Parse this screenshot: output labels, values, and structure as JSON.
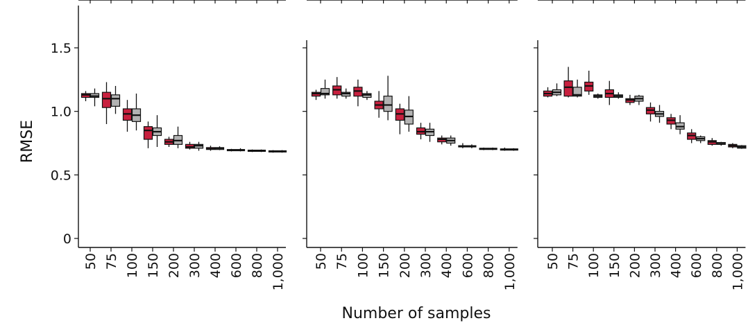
{
  "chart_data": {
    "type": "box",
    "ylabel": "RMSE",
    "xlabel": "Number of samples",
    "ylim": [
      0,
      1.8
    ],
    "yticks": [
      0,
      0.5,
      1.0,
      1.5
    ],
    "ytick_labels": [
      "0",
      "0.5",
      "1.0",
      "1.5"
    ],
    "categories": [
      "50",
      "75",
      "100",
      "150",
      "200",
      "300",
      "400",
      "600",
      "800",
      "1,000"
    ],
    "series_colors": [
      "#c8213f",
      "#b3b3b3"
    ],
    "panels": [
      {
        "series": [
          {
            "boxes": [
              {
                "q1": 1.11,
                "median": 1.13,
                "q3": 1.14,
                "min": 1.08,
                "max": 1.16
              },
              {
                "q1": 1.03,
                "median": 1.1,
                "q3": 1.15,
                "min": 0.9,
                "max": 1.23
              },
              {
                "q1": 0.93,
                "median": 0.98,
                "q3": 1.02,
                "min": 0.84,
                "max": 1.09
              },
              {
                "q1": 0.78,
                "median": 0.85,
                "q3": 0.88,
                "min": 0.71,
                "max": 0.92
              },
              {
                "q1": 0.74,
                "median": 0.76,
                "q3": 0.78,
                "min": 0.72,
                "max": 0.8
              },
              {
                "q1": 0.71,
                "median": 0.72,
                "q3": 0.74,
                "min": 0.7,
                "max": 0.76
              },
              {
                "q1": 0.7,
                "median": 0.705,
                "q3": 0.715,
                "min": 0.69,
                "max": 0.73
              },
              {
                "q1": 0.69,
                "median": 0.695,
                "q3": 0.7,
                "min": 0.685,
                "max": 0.705
              },
              {
                "q1": 0.685,
                "median": 0.69,
                "q3": 0.695,
                "min": 0.68,
                "max": 0.7
              },
              {
                "q1": 0.68,
                "median": 0.685,
                "q3": 0.69,
                "min": 0.675,
                "max": 0.695
              }
            ]
          },
          {
            "boxes": [
              {
                "q1": 1.11,
                "median": 1.12,
                "q3": 1.14,
                "min": 1.04,
                "max": 1.18
              },
              {
                "q1": 1.04,
                "median": 1.1,
                "q3": 1.13,
                "min": 0.98,
                "max": 1.2
              },
              {
                "q1": 0.92,
                "median": 0.97,
                "q3": 1.02,
                "min": 0.85,
                "max": 1.14
              },
              {
                "q1": 0.81,
                "median": 0.84,
                "q3": 0.87,
                "min": 0.72,
                "max": 0.97
              },
              {
                "q1": 0.74,
                "median": 0.77,
                "q3": 0.81,
                "min": 0.71,
                "max": 0.88
              },
              {
                "q1": 0.71,
                "median": 0.73,
                "q3": 0.74,
                "min": 0.69,
                "max": 0.76
              },
              {
                "q1": 0.7,
                "median": 0.71,
                "q3": 0.715,
                "min": 0.695,
                "max": 0.725
              },
              {
                "q1": 0.69,
                "median": 0.695,
                "q3": 0.7,
                "min": 0.685,
                "max": 0.71
              },
              {
                "q1": 0.685,
                "median": 0.69,
                "q3": 0.695,
                "min": 0.68,
                "max": 0.7
              },
              {
                "q1": 0.68,
                "median": 0.685,
                "q3": 0.69,
                "min": 0.675,
                "max": 0.695
              }
            ]
          }
        ]
      },
      {
        "series": [
          {
            "boxes": [
              {
                "q1": 1.12,
                "median": 1.14,
                "q3": 1.15,
                "min": 1.09,
                "max": 1.17
              },
              {
                "q1": 1.13,
                "median": 1.17,
                "q3": 1.2,
                "min": 1.1,
                "max": 1.27
              },
              {
                "q1": 1.12,
                "median": 1.16,
                "q3": 1.19,
                "min": 1.04,
                "max": 1.25
              },
              {
                "q1": 1.02,
                "median": 1.05,
                "q3": 1.08,
                "min": 0.95,
                "max": 1.16
              },
              {
                "q1": 0.93,
                "median": 0.98,
                "q3": 1.02,
                "min": 0.82,
                "max": 1.06
              },
              {
                "q1": 0.82,
                "median": 0.84,
                "q3": 0.87,
                "min": 0.78,
                "max": 0.91
              },
              {
                "q1": 0.76,
                "median": 0.78,
                "q3": 0.79,
                "min": 0.74,
                "max": 0.81
              },
              {
                "q1": 0.72,
                "median": 0.725,
                "q3": 0.73,
                "min": 0.71,
                "max": 0.75
              },
              {
                "q1": 0.7,
                "median": 0.705,
                "q3": 0.71,
                "min": 0.695,
                "max": 0.715
              },
              {
                "q1": 0.695,
                "median": 0.7,
                "q3": 0.705,
                "min": 0.69,
                "max": 0.715
              }
            ]
          },
          {
            "boxes": [
              {
                "q1": 1.13,
                "median": 1.14,
                "q3": 1.18,
                "min": 1.1,
                "max": 1.25
              },
              {
                "q1": 1.12,
                "median": 1.14,
                "q3": 1.15,
                "min": 1.1,
                "max": 1.18
              },
              {
                "q1": 1.11,
                "median": 1.13,
                "q3": 1.14,
                "min": 1.09,
                "max": 1.16
              },
              {
                "q1": 1.0,
                "median": 1.05,
                "q3": 1.12,
                "min": 0.93,
                "max": 1.28
              },
              {
                "q1": 0.9,
                "median": 0.96,
                "q3": 1.01,
                "min": 0.84,
                "max": 1.12
              },
              {
                "q1": 0.81,
                "median": 0.84,
                "q3": 0.86,
                "min": 0.76,
                "max": 0.91
              },
              {
                "q1": 0.75,
                "median": 0.77,
                "q3": 0.79,
                "min": 0.73,
                "max": 0.81
              },
              {
                "q1": 0.72,
                "median": 0.725,
                "q3": 0.73,
                "min": 0.71,
                "max": 0.74
              },
              {
                "q1": 0.7,
                "median": 0.705,
                "q3": 0.71,
                "min": 0.695,
                "max": 0.715
              },
              {
                "q1": 0.695,
                "median": 0.7,
                "q3": 0.705,
                "min": 0.69,
                "max": 0.71
              }
            ]
          }
        ]
      },
      {
        "series": [
          {
            "boxes": [
              {
                "q1": 1.12,
                "median": 1.14,
                "q3": 1.16,
                "min": 1.11,
                "max": 1.19
              },
              {
                "q1": 1.12,
                "median": 1.19,
                "q3": 1.24,
                "min": 1.11,
                "max": 1.35
              },
              {
                "q1": 1.16,
                "median": 1.2,
                "q3": 1.23,
                "min": 1.13,
                "max": 1.32
              },
              {
                "q1": 1.11,
                "median": 1.14,
                "q3": 1.17,
                "min": 1.05,
                "max": 1.24
              },
              {
                "q1": 1.07,
                "median": 1.09,
                "q3": 1.1,
                "min": 1.05,
                "max": 1.13
              },
              {
                "q1": 0.98,
                "median": 1.01,
                "q3": 1.03,
                "min": 0.92,
                "max": 1.07
              },
              {
                "q1": 0.9,
                "median": 0.93,
                "q3": 0.95,
                "min": 0.86,
                "max": 0.98
              },
              {
                "q1": 0.78,
                "median": 0.81,
                "q3": 0.83,
                "min": 0.75,
                "max": 0.86
              },
              {
                "q1": 0.74,
                "median": 0.76,
                "q3": 0.77,
                "min": 0.73,
                "max": 0.79
              },
              {
                "q1": 0.72,
                "median": 0.73,
                "q3": 0.74,
                "min": 0.71,
                "max": 0.75
              }
            ]
          },
          {
            "boxes": [
              {
                "q1": 1.13,
                "median": 1.15,
                "q3": 1.17,
                "min": 1.12,
                "max": 1.22
              },
              {
                "q1": 1.12,
                "median": 1.13,
                "q3": 1.19,
                "min": 1.11,
                "max": 1.25
              },
              {
                "q1": 1.11,
                "median": 1.12,
                "q3": 1.13,
                "min": 1.1,
                "max": 1.14
              },
              {
                "q1": 1.11,
                "median": 1.12,
                "q3": 1.13,
                "min": 1.1,
                "max": 1.15
              },
              {
                "q1": 1.08,
                "median": 1.1,
                "q3": 1.12,
                "min": 1.05,
                "max": 1.13
              },
              {
                "q1": 0.96,
                "median": 0.98,
                "q3": 1.0,
                "min": 0.91,
                "max": 1.05
              },
              {
                "q1": 0.86,
                "median": 0.88,
                "q3": 0.91,
                "min": 0.82,
                "max": 0.97
              },
              {
                "q1": 0.77,
                "median": 0.785,
                "q3": 0.8,
                "min": 0.75,
                "max": 0.81
              },
              {
                "q1": 0.74,
                "median": 0.745,
                "q3": 0.755,
                "min": 0.73,
                "max": 0.76
              },
              {
                "q1": 0.71,
                "median": 0.72,
                "q3": 0.73,
                "min": 0.705,
                "max": 0.735
              }
            ]
          }
        ]
      }
    ]
  }
}
